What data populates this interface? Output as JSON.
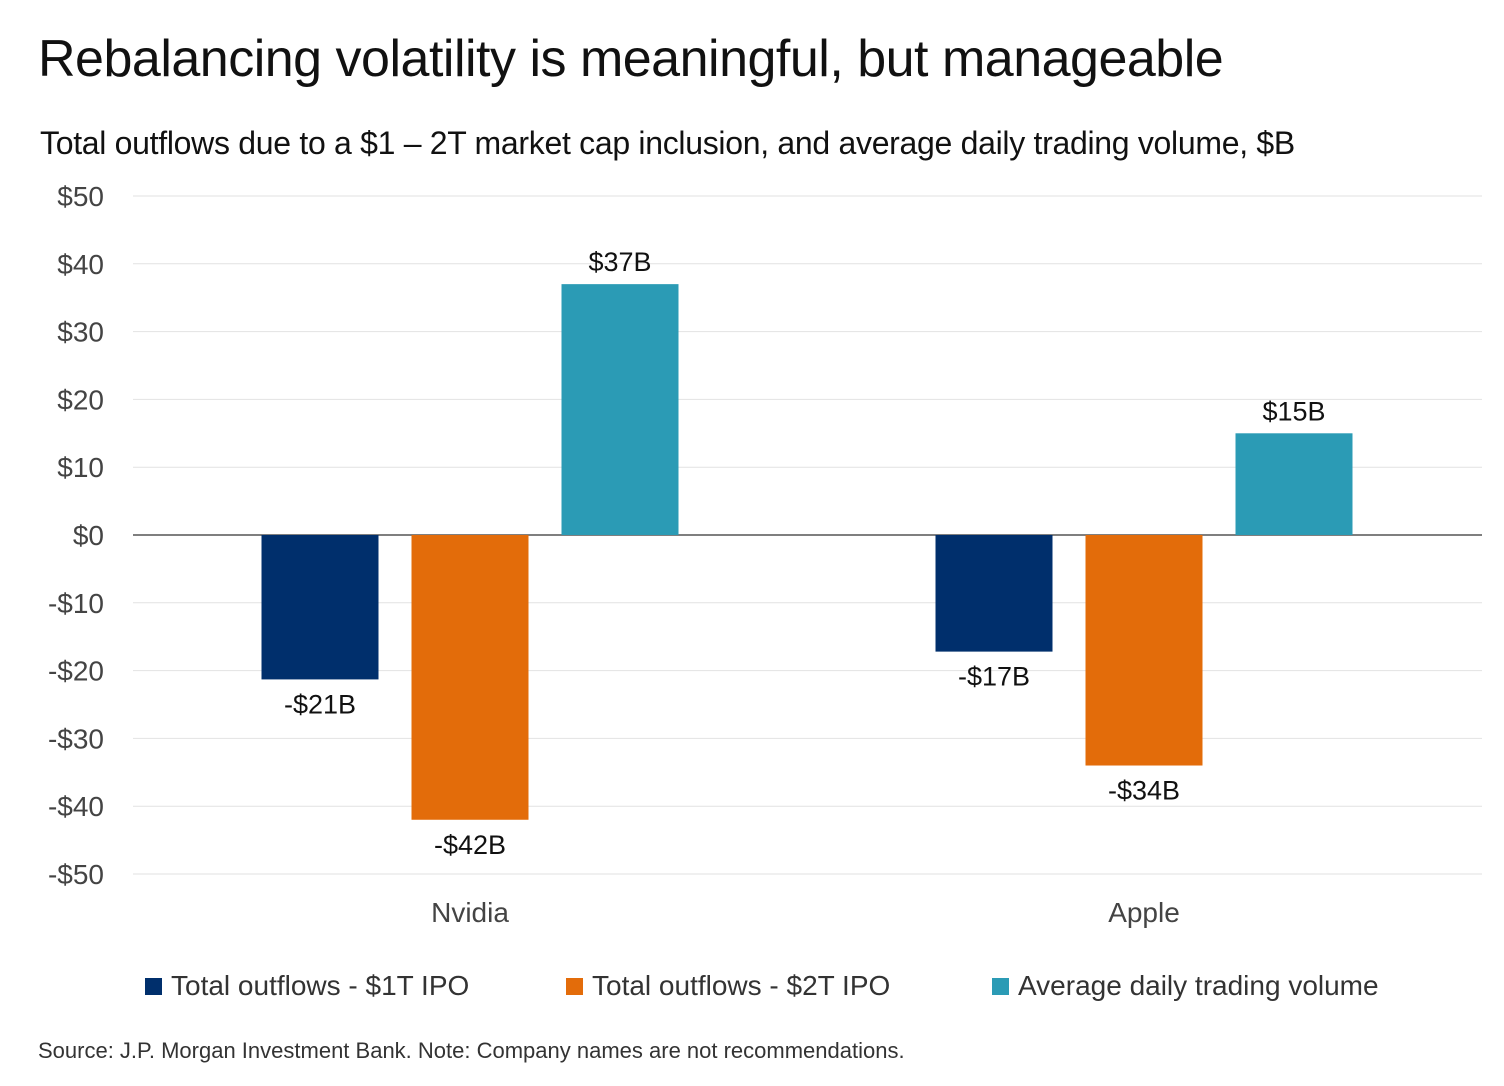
{
  "title": "Rebalancing volatility is meaningful, but manageable",
  "subtitle": "Total outflows due to a $1 – 2T market cap inclusion, and average daily trading volume, $B",
  "source": "Source: J.P. Morgan Investment Bank. Note: Company names are not recommendations.",
  "chart_data": {
    "type": "bar",
    "categories": [
      "Nvidia",
      "Apple"
    ],
    "series": [
      {
        "name": "Total outflows - $1T IPO",
        "color": "#002f6c",
        "values": [
          -21.3,
          -17.2
        ],
        "labels": [
          "-$21B",
          "-$17B"
        ]
      },
      {
        "name": "Total outflows - $2T IPO",
        "color": "#e36c0a",
        "values": [
          -42,
          -34
        ],
        "labels": [
          "-$42B",
          "-$34B"
        ]
      },
      {
        "name": "Average daily trading volume",
        "color": "#2b9bb5",
        "values": [
          37,
          15
        ],
        "labels": [
          "$37B",
          "$15B"
        ]
      }
    ],
    "ylim": [
      -50,
      50
    ],
    "yticks": [
      50,
      40,
      30,
      20,
      10,
      0,
      -10,
      -20,
      -30,
      -40,
      -50
    ],
    "ytick_labels": [
      "$50",
      "$40",
      "$30",
      "$20",
      "$10",
      "$0",
      "-$10",
      "-$20",
      "-$30",
      "-$40",
      "-$50"
    ],
    "grid": true,
    "legend_position": "bottom"
  }
}
